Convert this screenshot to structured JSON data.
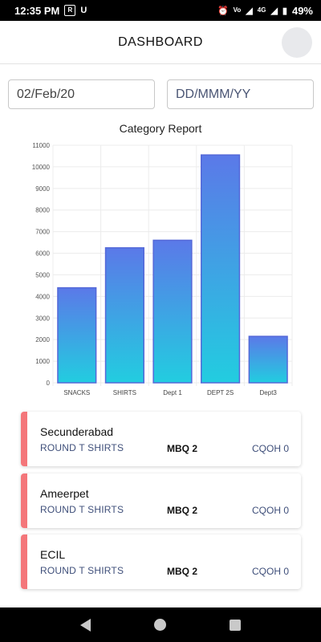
{
  "status_bar": {
    "time": "12:35 PM",
    "battery": "49%",
    "network": "4G"
  },
  "header": {
    "title": "DASHBOARD"
  },
  "filters": {
    "from_date_value": "02/Feb/20",
    "to_date_placeholder": "DD/MMM/YY"
  },
  "chart_data": {
    "type": "bar",
    "title": "Category Report",
    "categories": [
      "SNACKS",
      "SHIRTS",
      "Dept 1",
      "DEPT 2S",
      "Dept3"
    ],
    "values": [
      4400,
      6250,
      6600,
      10550,
      2150
    ],
    "ylim": [
      0,
      11000
    ],
    "yticks": [
      "0",
      "1000",
      "2000",
      "3000",
      "4000",
      "5000",
      "6000",
      "7000",
      "8000",
      "9000",
      "10000",
      "11000"
    ],
    "grid": true,
    "colors": {
      "top": "#5b79e8",
      "bottom": "#22cde0",
      "border": "#5468d8"
    }
  },
  "report_cards": [
    {
      "title": "Secunderabad",
      "item": "ROUND T SHIRTS",
      "mbq": "MBQ 2",
      "cqoh": "CQOH 0"
    },
    {
      "title": "Ameerpet",
      "item": "ROUND T SHIRTS",
      "mbq": "MBQ 2",
      "cqoh": "CQOH 0"
    },
    {
      "title": "ECIL",
      "item": "ROUND T SHIRTS",
      "mbq": "MBQ 2",
      "cqoh": "CQOH 0"
    }
  ],
  "nav_bar": {
    "icons": [
      "back-icon",
      "home-icon",
      "recent-apps-icon"
    ]
  }
}
